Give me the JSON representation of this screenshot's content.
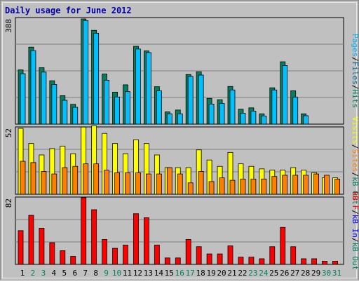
{
  "chart_data": {
    "type": "bar",
    "title": "Daily usage for June 2012",
    "categories": [
      "1",
      "2",
      "3",
      "4",
      "5",
      "6",
      "7",
      "8",
      "9",
      "10",
      "11",
      "12",
      "13",
      "14",
      "15",
      "16",
      "17",
      "18",
      "19",
      "20",
      "21",
      "22",
      "23",
      "24",
      "25",
      "26",
      "27",
      "28",
      "29",
      "30",
      "31"
    ],
    "weekend_days": [
      "2",
      "3",
      "9",
      "10",
      "16",
      "17",
      "23",
      "24",
      "30",
      "31"
    ],
    "panels": [
      {
        "id": "top",
        "ymax_label": "388",
        "ylim": [
          0,
          388
        ],
        "series": [
          {
            "name": "Pages",
            "values": [
              null,
              null,
              null,
              null,
              null,
              null,
              null,
              null,
              null,
              null,
              null,
              null,
              null,
              null,
              null,
              null,
              null,
              null,
              null,
              null,
              null,
              null,
              null,
              null,
              null,
              null,
              null,
              null,
              null,
              null,
              null
            ]
          },
          {
            "name": "Files",
            "values": [
              200,
              284,
              208,
              160,
              105,
              73,
              388,
              346,
              185,
              118,
              145,
              287,
              270,
              138,
              45,
              52,
              183,
              193,
              95,
              90,
              139,
              55,
              60,
              38,
              134,
              230,
              123,
              38,
              null,
              null,
              null
            ]
          },
          {
            "name": "Hits",
            "values": [
              186,
              271,
              192,
              146,
              88,
              62,
              382,
              335,
              162,
              100,
              120,
              277,
              264,
              123,
              38,
              38,
              176,
              181,
              74,
              76,
              126,
              40,
              48,
              30,
              126,
              216,
              99,
              31,
              null,
              null,
              null
            ]
          }
        ],
        "legend": [
          "Pages",
          "/",
          "Files",
          "/",
          "Hits"
        ],
        "legend_colors": [
          "#00b2ff",
          "#000000",
          "#006699",
          "#000000",
          "#008060"
        ]
      },
      {
        "id": "middle",
        "ymax_label": "52",
        "ylim": [
          0,
          52
        ],
        "series": [
          {
            "name": "Visits",
            "values": [
              52,
              40,
              31,
              36,
              38,
              32,
              53,
              54,
              48,
              40,
              32,
              43,
              40,
              31,
              21,
              21,
              21,
              35,
              27,
              22,
              33,
              24,
              22,
              20,
              19,
              19,
              21,
              19,
              17,
              13,
              13
            ]
          },
          {
            "name": "Sites",
            "values": [
              26,
              25,
              18,
              16,
              21,
              22,
              24,
              24,
              19,
              17,
              17,
              17,
              16,
              16,
              21,
              16,
              9,
              18,
              10,
              13,
              11,
              12,
              12,
              12,
              14,
              15,
              15,
              15,
              16,
              15,
              12
            ]
          }
        ],
        "legend": [
          "Visits",
          "/",
          "Sites",
          "/",
          "kB Out"
        ],
        "legend_colors": [
          "#ffff00",
          "#000000",
          "#ff8000",
          "#000000",
          "#008060"
        ]
      },
      {
        "id": "bottom",
        "ymax_label": "82",
        "ylim": [
          0,
          82
        ],
        "series": [
          {
            "name": "kB F",
            "values": [
              42,
              61,
              45,
              27,
              17,
              10,
              83,
              68,
              31,
              20,
              24,
              63,
              58,
              24,
              8,
              8,
              31,
              22,
              13,
              13,
              23,
              9,
              9,
              7,
              22,
              46,
              22,
              7,
              7,
              4,
              4
            ]
          }
        ],
        "legend": [
          "kB F",
          "/",
          "kB In",
          "/",
          "kB Out"
        ],
        "legend_colors": [
          "#ff0000",
          "#000000",
          "#0000ff",
          "#000000",
          "#008060"
        ]
      }
    ],
    "grid": true
  }
}
